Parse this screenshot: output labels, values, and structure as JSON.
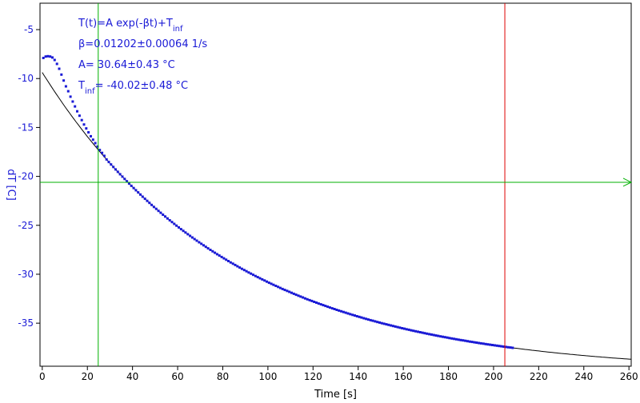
{
  "chart_data": {
    "type": "scatter",
    "title": "",
    "xlabel": "Time [s]",
    "ylabel": "dT [C]",
    "xlim": [
      -1,
      261
    ],
    "ylim": [
      -39.4,
      -2.3
    ],
    "x_ticks": [
      0,
      20,
      40,
      60,
      80,
      100,
      120,
      140,
      160,
      180,
      200,
      220,
      240,
      260
    ],
    "y_ticks": [
      -5,
      -10,
      -15,
      -20,
      -25,
      -30,
      -35
    ],
    "grid": false,
    "legend": "none",
    "annotations": {
      "line1": "T(t)=A exp(-βt)+T",
      "line1_sub": "inf",
      "line2": "β=0.01202±0.00064 1/s",
      "line3": "A= 30.64±0.43 °C",
      "line4_pre": "T",
      "line4_sub": "inf",
      "line4_post": "= -40.02±0.48 °C"
    },
    "fit": {
      "A": 30.64,
      "beta": 0.01202,
      "T_inf": -40.02,
      "x_range": [
        0,
        261
      ]
    },
    "cursors": {
      "vertical_green_x": 24.8,
      "vertical_red_x": 205,
      "horizontal_green_y": -20.6
    },
    "series": [
      {
        "points": [
          [
            0.5,
            -7.9
          ],
          [
            1.5,
            -7.75
          ],
          [
            2.5,
            -7.72
          ],
          [
            3.5,
            -7.75
          ],
          [
            4.5,
            -7.85
          ],
          [
            5.5,
            -8.1
          ],
          [
            6.5,
            -8.5
          ],
          [
            7.5,
            -9.0
          ],
          [
            8.5,
            -9.6
          ],
          [
            9.5,
            -10.2
          ],
          [
            10.5,
            -10.8
          ],
          [
            11.5,
            -11.3
          ],
          [
            12.5,
            -11.85
          ],
          [
            13.5,
            -12.35
          ],
          [
            14.5,
            -12.85
          ],
          [
            15.5,
            -13.35
          ],
          [
            16.5,
            -13.8
          ],
          [
            17.5,
            -14.25
          ],
          [
            18.5,
            -14.7
          ],
          [
            19.5,
            -15.1
          ],
          [
            20.5,
            -15.5
          ],
          [
            21.5,
            -15.9
          ],
          [
            22.5,
            -16.25
          ],
          [
            23.5,
            -16.6
          ],
          [
            24.5,
            -16.95
          ],
          [
            25.5,
            -17.3
          ],
          [
            26.5,
            -17.6
          ],
          [
            27.5,
            -17.9
          ]
        ],
        "continues_with_fit_until": 209
      }
    ],
    "colors": {
      "data": "#1a1ad6",
      "fit": "#000000",
      "cursor_green": "#00b000",
      "cursor_red": "#e00000",
      "text": "#1a1ad6"
    }
  }
}
